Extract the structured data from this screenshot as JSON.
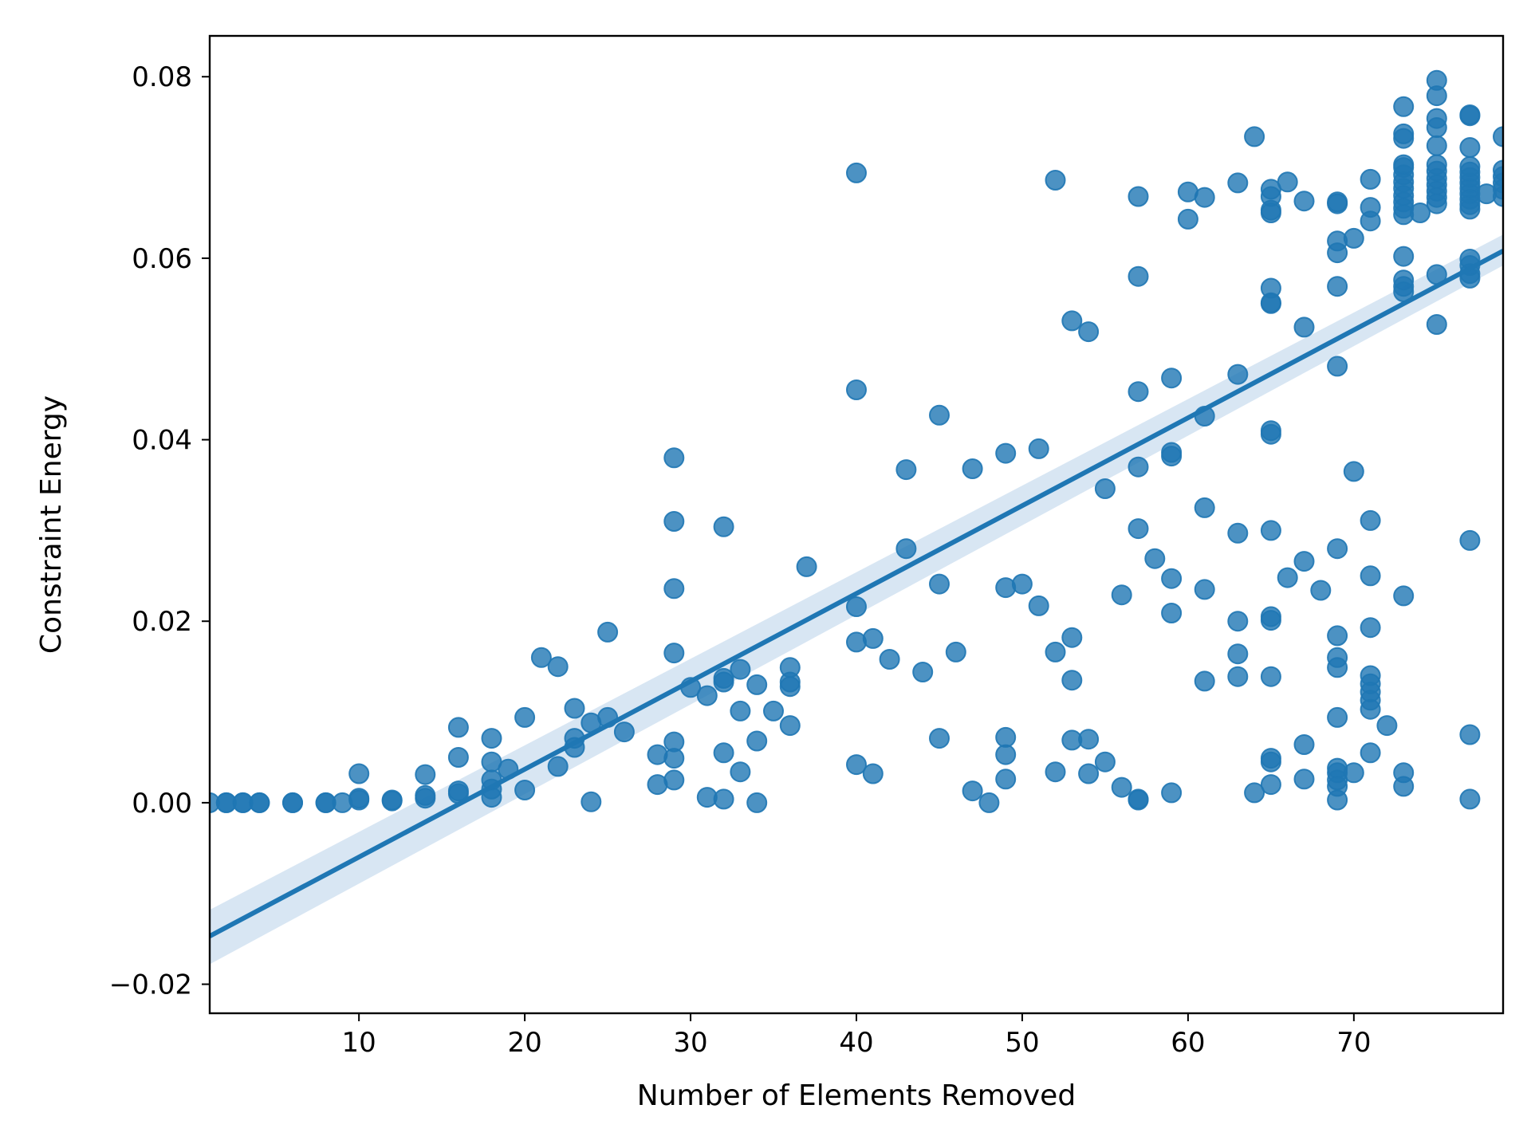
{
  "chart_data": {
    "type": "scatter",
    "xlabel": "Number of Elements Removed",
    "ylabel": "Constraint Energy",
    "xlim": [
      1,
      79
    ],
    "ylim": [
      -0.0232,
      0.0845
    ],
    "x_ticks": [
      10,
      20,
      30,
      40,
      50,
      60,
      70
    ],
    "y_ticks": [
      -0.02,
      0.0,
      0.02,
      0.04,
      0.06,
      0.08
    ],
    "x_tick_labels": [
      "10",
      "20",
      "30",
      "40",
      "50",
      "60",
      "70"
    ],
    "y_tick_labels": [
      "−0.02",
      "0.00",
      "0.02",
      "0.04",
      "0.06",
      "0.08"
    ],
    "grid": false,
    "colors": {
      "points": "#1f77b4",
      "line": "#1f77b4",
      "band": "#c8dcee"
    },
    "regression": {
      "x": [
        1,
        79
      ],
      "y": [
        -0.0147,
        0.0608
      ],
      "ci_lower": [
        -0.0178,
        0.0592
      ],
      "ci_upper": [
        -0.0118,
        0.0626
      ]
    },
    "points": [
      [
        1,
        0.0
      ],
      [
        2,
        0.0
      ],
      [
        2,
        0.0
      ],
      [
        3,
        0.0
      ],
      [
        3,
        0.0
      ],
      [
        4,
        0.0
      ],
      [
        4,
        0.0
      ],
      [
        6,
        0.0
      ],
      [
        6,
        0.0
      ],
      [
        8,
        0.0
      ],
      [
        8,
        0.0
      ],
      [
        9,
        0.0
      ],
      [
        10,
        0.0003
      ],
      [
        10,
        0.0005
      ],
      [
        10,
        0.0032
      ],
      [
        12,
        0.0003
      ],
      [
        12,
        0.0002
      ],
      [
        14,
        0.0005
      ],
      [
        14,
        0.0008
      ],
      [
        14,
        0.0031
      ],
      [
        16,
        0.001
      ],
      [
        16,
        0.0013
      ],
      [
        16,
        0.005
      ],
      [
        16,
        0.0083
      ],
      [
        18,
        0.0006
      ],
      [
        18,
        0.0015
      ],
      [
        18,
        0.0025
      ],
      [
        18,
        0.0045
      ],
      [
        18,
        0.0071
      ],
      [
        19,
        0.0037
      ],
      [
        20,
        0.0014
      ],
      [
        20,
        0.0094
      ],
      [
        21,
        0.016
      ],
      [
        22,
        0.004
      ],
      [
        22,
        0.015
      ],
      [
        23,
        0.0061
      ],
      [
        23,
        0.0071
      ],
      [
        23,
        0.0104
      ],
      [
        24,
        0.0001
      ],
      [
        24,
        0.0088
      ],
      [
        25,
        0.0094
      ],
      [
        25,
        0.0188
      ],
      [
        26,
        0.0078
      ],
      [
        28,
        0.002
      ],
      [
        28,
        0.0053
      ],
      [
        29,
        0.0025
      ],
      [
        29,
        0.0049
      ],
      [
        29,
        0.0067
      ],
      [
        29,
        0.0165
      ],
      [
        29,
        0.0236
      ],
      [
        29,
        0.031
      ],
      [
        29,
        0.038
      ],
      [
        30,
        0.0127
      ],
      [
        31,
        0.0006
      ],
      [
        31,
        0.0118
      ],
      [
        32,
        0.0004
      ],
      [
        32,
        0.0055
      ],
      [
        32,
        0.0133
      ],
      [
        32,
        0.0137
      ],
      [
        32,
        0.0304
      ],
      [
        33,
        0.0034
      ],
      [
        33,
        0.0101
      ],
      [
        33,
        0.0147
      ],
      [
        34,
        0.0
      ],
      [
        34,
        0.0068
      ],
      [
        34,
        0.013
      ],
      [
        35,
        0.0101
      ],
      [
        36,
        0.0085
      ],
      [
        36,
        0.0128
      ],
      [
        36,
        0.0133
      ],
      [
        36,
        0.0149
      ],
      [
        37,
        0.026
      ],
      [
        40,
        0.0042
      ],
      [
        40,
        0.0177
      ],
      [
        40,
        0.0216
      ],
      [
        40,
        0.0455
      ],
      [
        40,
        0.0694
      ],
      [
        41,
        0.0032
      ],
      [
        41,
        0.0181
      ],
      [
        42,
        0.0158
      ],
      [
        43,
        0.028
      ],
      [
        43,
        0.0367
      ],
      [
        44,
        0.0144
      ],
      [
        45,
        0.0071
      ],
      [
        45,
        0.0241
      ],
      [
        45,
        0.0427
      ],
      [
        46,
        0.0166
      ],
      [
        47,
        0.0013
      ],
      [
        47,
        0.0368
      ],
      [
        48,
        0.0
      ],
      [
        49,
        0.0026
      ],
      [
        49,
        0.0053
      ],
      [
        49,
        0.0072
      ],
      [
        49,
        0.0237
      ],
      [
        49,
        0.0385
      ],
      [
        50,
        0.0241
      ],
      [
        51,
        0.0217
      ],
      [
        51,
        0.039
      ],
      [
        52,
        0.0034
      ],
      [
        52,
        0.0166
      ],
      [
        52,
        0.0686
      ],
      [
        53,
        0.0069
      ],
      [
        53,
        0.0135
      ],
      [
        53,
        0.0182
      ],
      [
        53,
        0.0531
      ],
      [
        54,
        0.0032
      ],
      [
        54,
        0.007
      ],
      [
        54,
        0.0519
      ],
      [
        55,
        0.0045
      ],
      [
        55,
        0.0346
      ],
      [
        56,
        0.0017
      ],
      [
        56,
        0.0229
      ],
      [
        57,
        0.0003
      ],
      [
        57,
        0.0004
      ],
      [
        57,
        0.0302
      ],
      [
        57,
        0.037
      ],
      [
        57,
        0.0453
      ],
      [
        57,
        0.058
      ],
      [
        57,
        0.0668
      ],
      [
        58,
        0.0269
      ],
      [
        59,
        0.0011
      ],
      [
        59,
        0.0209
      ],
      [
        59,
        0.0247
      ],
      [
        59,
        0.0382
      ],
      [
        59,
        0.0386
      ],
      [
        59,
        0.0468
      ],
      [
        60,
        0.0643
      ],
      [
        60,
        0.0673
      ],
      [
        61,
        0.0134
      ],
      [
        61,
        0.0235
      ],
      [
        61,
        0.0325
      ],
      [
        61,
        0.0426
      ],
      [
        61,
        0.0667
      ],
      [
        63,
        0.0139
      ],
      [
        63,
        0.0164
      ],
      [
        63,
        0.02
      ],
      [
        63,
        0.0297
      ],
      [
        63,
        0.0472
      ],
      [
        63,
        0.0683
      ],
      [
        64,
        0.0011
      ],
      [
        64,
        0.0734
      ],
      [
        65,
        0.002
      ],
      [
        65,
        0.0045
      ],
      [
        65,
        0.0049
      ],
      [
        65,
        0.0139
      ],
      [
        65,
        0.0201
      ],
      [
        65,
        0.0205
      ],
      [
        65,
        0.03
      ],
      [
        65,
        0.0406
      ],
      [
        65,
        0.041
      ],
      [
        65,
        0.055
      ],
      [
        65,
        0.0551
      ],
      [
        65,
        0.0567
      ],
      [
        65,
        0.065
      ],
      [
        65,
        0.0653
      ],
      [
        65,
        0.0668
      ],
      [
        65,
        0.0676
      ],
      [
        66,
        0.0248
      ],
      [
        66,
        0.0684
      ],
      [
        67,
        0.0026
      ],
      [
        67,
        0.0064
      ],
      [
        67,
        0.0266
      ],
      [
        67,
        0.0524
      ],
      [
        67,
        0.0663
      ],
      [
        68,
        0.0234
      ],
      [
        69,
        0.0003
      ],
      [
        69,
        0.0018
      ],
      [
        69,
        0.0025
      ],
      [
        69,
        0.0033
      ],
      [
        69,
        0.0038
      ],
      [
        69,
        0.0094
      ],
      [
        69,
        0.0149
      ],
      [
        69,
        0.016
      ],
      [
        69,
        0.0184
      ],
      [
        69,
        0.028
      ],
      [
        69,
        0.0481
      ],
      [
        69,
        0.0569
      ],
      [
        69,
        0.0606
      ],
      [
        69,
        0.0619
      ],
      [
        69,
        0.066
      ],
      [
        69,
        0.0662
      ],
      [
        70,
        0.0033
      ],
      [
        70,
        0.0365
      ],
      [
        70,
        0.0622
      ],
      [
        71,
        0.0055
      ],
      [
        71,
        0.0103
      ],
      [
        71,
        0.0113
      ],
      [
        71,
        0.0122
      ],
      [
        71,
        0.0131
      ],
      [
        71,
        0.014
      ],
      [
        71,
        0.0193
      ],
      [
        71,
        0.025
      ],
      [
        71,
        0.0311
      ],
      [
        71,
        0.0641
      ],
      [
        71,
        0.0656
      ],
      [
        71,
        0.0687
      ],
      [
        72,
        0.0085
      ],
      [
        73,
        0.0018
      ],
      [
        73,
        0.0033
      ],
      [
        73,
        0.0228
      ],
      [
        73,
        0.0563
      ],
      [
        73,
        0.0569
      ],
      [
        73,
        0.0576
      ],
      [
        73,
        0.0602
      ],
      [
        73,
        0.0648
      ],
      [
        73,
        0.0655
      ],
      [
        73,
        0.0662
      ],
      [
        73,
        0.0669
      ],
      [
        73,
        0.0677
      ],
      [
        73,
        0.0684
      ],
      [
        73,
        0.0692
      ],
      [
        73,
        0.07
      ],
      [
        73,
        0.0703
      ],
      [
        73,
        0.0732
      ],
      [
        73,
        0.0737
      ],
      [
        73,
        0.0767
      ],
      [
        74,
        0.065
      ],
      [
        75,
        0.0527
      ],
      [
        75,
        0.0582
      ],
      [
        75,
        0.066
      ],
      [
        75,
        0.0667
      ],
      [
        75,
        0.0674
      ],
      [
        75,
        0.0681
      ],
      [
        75,
        0.0688
      ],
      [
        75,
        0.0696
      ],
      [
        75,
        0.0703
      ],
      [
        75,
        0.0724
      ],
      [
        75,
        0.0744
      ],
      [
        75,
        0.0754
      ],
      [
        75,
        0.0779
      ],
      [
        75,
        0.0796
      ],
      [
        77,
        0.0004
      ],
      [
        77,
        0.0075
      ],
      [
        77,
        0.0289
      ],
      [
        77,
        0.0578
      ],
      [
        77,
        0.0583
      ],
      [
        77,
        0.0592
      ],
      [
        77,
        0.0599
      ],
      [
        77,
        0.0654
      ],
      [
        77,
        0.0659
      ],
      [
        77,
        0.0665
      ],
      [
        77,
        0.0671
      ],
      [
        77,
        0.0677
      ],
      [
        77,
        0.0683
      ],
      [
        77,
        0.0689
      ],
      [
        77,
        0.0695
      ],
      [
        77,
        0.0701
      ],
      [
        77,
        0.0722
      ],
      [
        77,
        0.0757
      ],
      [
        77,
        0.0758
      ],
      [
        78,
        0.0671
      ],
      [
        79,
        0.0668
      ],
      [
        79,
        0.0676
      ],
      [
        79,
        0.0683
      ],
      [
        79,
        0.069
      ],
      [
        79,
        0.0697
      ],
      [
        79,
        0.0734
      ]
    ]
  }
}
